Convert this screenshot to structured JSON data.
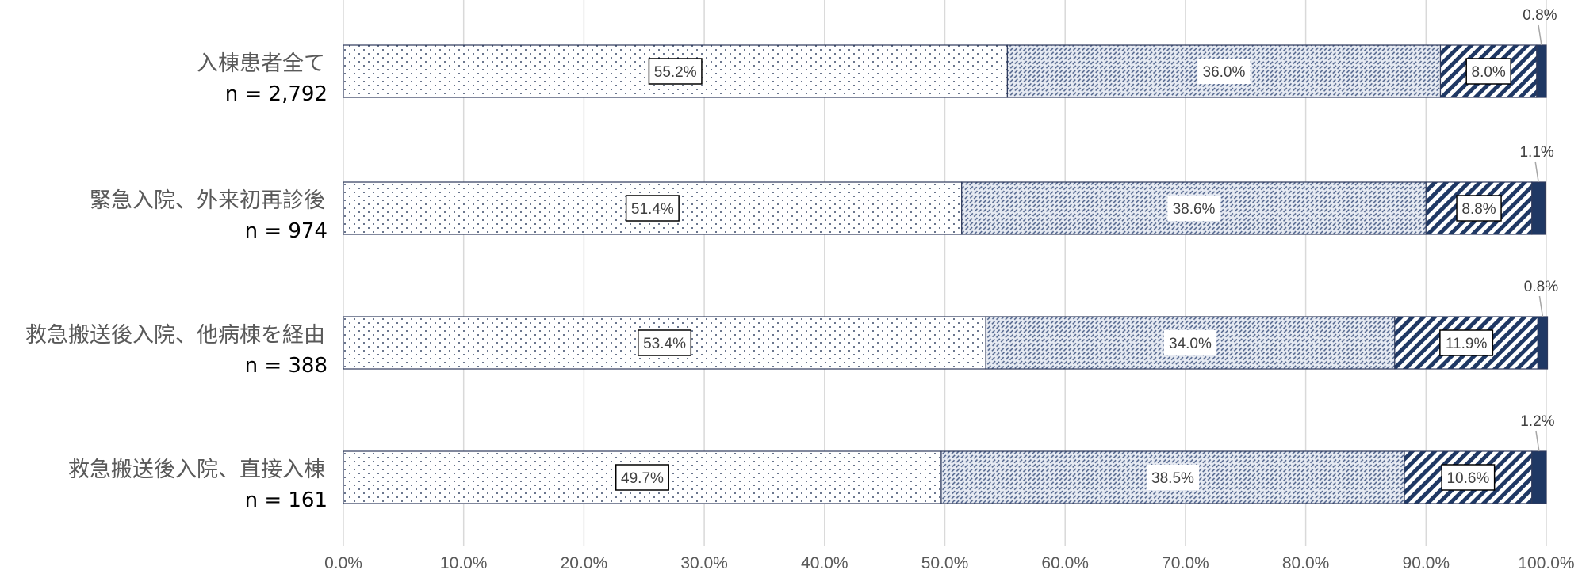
{
  "chart_data": {
    "type": "bar",
    "orientation": "horizontal",
    "stacked": "percent",
    "grid": true,
    "xlim": [
      0,
      100
    ],
    "x_ticks": [
      "0.0%",
      "10.0%",
      "20.0%",
      "30.0%",
      "40.0%",
      "50.0%",
      "60.0%",
      "70.0%",
      "80.0%",
      "90.0%",
      "100.0%"
    ],
    "categories": [
      {
        "label": "入棟患者全て",
        "n": "n = 2,792"
      },
      {
        "label": "緊急入院、外来初再診後",
        "n": "n = 974"
      },
      {
        "label": "救急搬送後入院、他病棟を経由",
        "n": "n = 388"
      },
      {
        "label": "救急搬送後入院、直接入棟",
        "n": "n = 161"
      }
    ],
    "series": [
      {
        "values": [
          55.2,
          51.4,
          53.4,
          49.7
        ],
        "labels": [
          "55.2%",
          "51.4%",
          "53.4%",
          "49.7%"
        ],
        "pattern": "dots",
        "color": "#ffffff"
      },
      {
        "values": [
          36.0,
          38.6,
          34.0,
          38.5
        ],
        "labels": [
          "36.0%",
          "38.6%",
          "34.0%",
          "38.5%"
        ],
        "pattern": "dashes",
        "color": "#dde3ee"
      },
      {
        "values": [
          8.0,
          8.8,
          11.9,
          10.6
        ],
        "labels": [
          "8.0%",
          "8.8%",
          "11.9%",
          "10.6%"
        ],
        "pattern": "stripes",
        "color": "#1f3864"
      },
      {
        "values": [
          0.8,
          1.1,
          0.8,
          1.2
        ],
        "labels": [
          "0.8%",
          "1.1%",
          "0.8%",
          "1.2%"
        ],
        "pattern": "solid",
        "color": "#1f3864"
      }
    ]
  }
}
